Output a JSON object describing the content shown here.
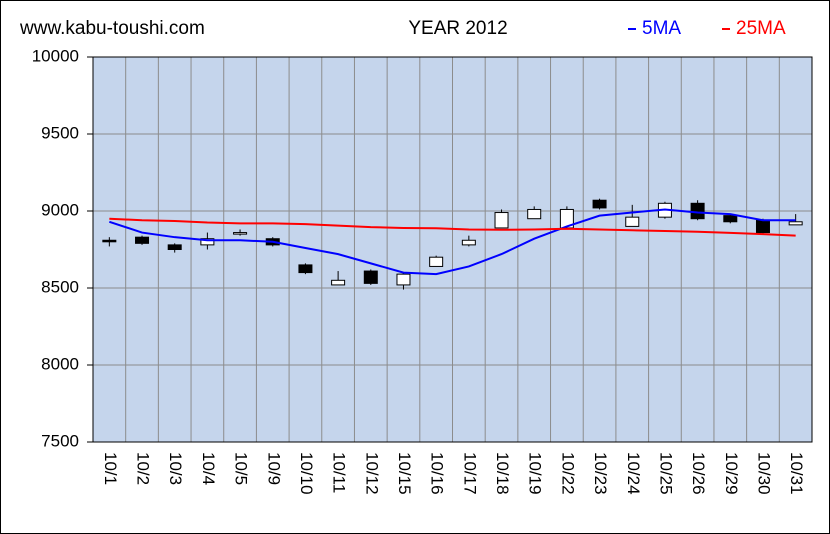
{
  "chart_data": {
    "type": "candlestick",
    "site": "www.kabu-toushi.com",
    "title": "YEAR 2012",
    "categories": [
      "10/1",
      "10/2",
      "10/3",
      "10/4",
      "10/5",
      "10/9",
      "10/10",
      "10/11",
      "10/12",
      "10/15",
      "10/16",
      "10/17",
      "10/18",
      "10/19",
      "10/22",
      "10/23",
      "10/24",
      "10/25",
      "10/26",
      "10/29",
      "10/30",
      "10/31"
    ],
    "open": [
      8810,
      8830,
      8780,
      8780,
      8850,
      8820,
      8650,
      8520,
      8610,
      8520,
      8640,
      8780,
      8890,
      8950,
      8890,
      9070,
      8900,
      8960,
      9050,
      8970,
      8940,
      8910
    ],
    "high": [
      8830,
      8840,
      8790,
      8860,
      8880,
      8830,
      8660,
      8610,
      8620,
      8600,
      8710,
      8840,
      9010,
      9030,
      9030,
      9080,
      9040,
      9060,
      9070,
      8980,
      8950,
      8980
    ],
    "low": [
      8770,
      8780,
      8730,
      8750,
      8840,
      8770,
      8590,
      8520,
      8520,
      8490,
      8640,
      8770,
      8890,
      8950,
      8880,
      9010,
      8900,
      8950,
      8940,
      8920,
      8850,
      8910
    ],
    "close": [
      8800,
      8790,
      8750,
      8820,
      8860,
      8780,
      8600,
      8550,
      8530,
      8590,
      8700,
      8810,
      8990,
      9010,
      9010,
      9020,
      8960,
      9050,
      8950,
      8930,
      8860,
      8930
    ],
    "up_color": "#ffffff",
    "down_color": "#000000",
    "series": [
      {
        "name": "5MA",
        "color": "#0000ff",
        "values": [
          8930,
          8860,
          8830,
          8810,
          8810,
          8800,
          8760,
          8720,
          8660,
          8600,
          8590,
          8640,
          8720,
          8820,
          8900,
          8970,
          8990,
          9010,
          8990,
          8980,
          8940,
          8940
        ]
      },
      {
        "name": "25MA",
        "color": "#ff0000",
        "values": [
          8950,
          8940,
          8935,
          8925,
          8920,
          8920,
          8915,
          8905,
          8895,
          8890,
          8888,
          8880,
          8878,
          8880,
          8885,
          8880,
          8875,
          8870,
          8865,
          8858,
          8850,
          8840
        ]
      }
    ],
    "ylim": [
      7500,
      10000
    ],
    "yticks": [
      7500,
      8000,
      8500,
      9000,
      9500,
      10000
    ],
    "grid": true,
    "plot_color": "#c5d5ec"
  }
}
